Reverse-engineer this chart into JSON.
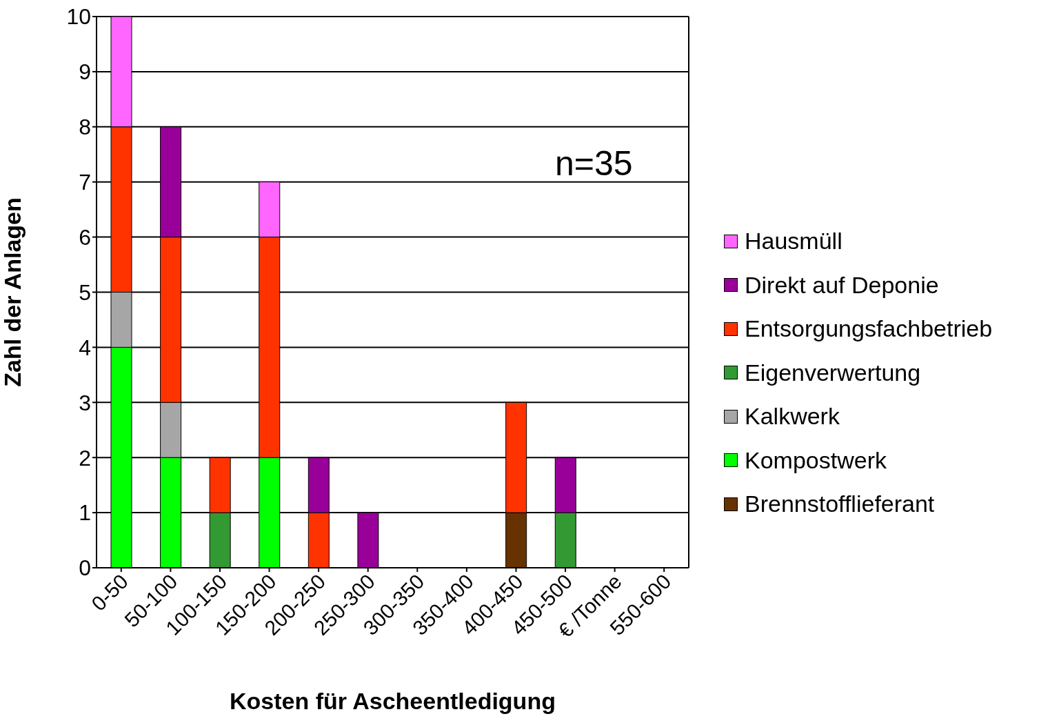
{
  "chart_data": {
    "type": "bar",
    "stacked": true,
    "xlabel": "Kosten für Ascheentledigung",
    "ylabel": "Zahl der Anlagen",
    "categories": [
      "0-50",
      "50-100",
      "100-150",
      "150-200",
      "200-250",
      "250-300",
      "300-350",
      "350-400",
      "400-450",
      "450-500",
      "€ /Tonne",
      "550-600"
    ],
    "series": [
      {
        "name": "Brennstofflieferant",
        "color": "#663300",
        "values": [
          0,
          0,
          0,
          0,
          0,
          0,
          0,
          0,
          1,
          0,
          0,
          0
        ]
      },
      {
        "name": "Kompostwerk",
        "color": "#00ff00",
        "values": [
          4,
          2,
          0,
          2,
          0,
          0,
          0,
          0,
          0,
          0,
          0,
          0
        ]
      },
      {
        "name": "Kalkwerk",
        "color": "#a6a6a6",
        "values": [
          1,
          1,
          0,
          0,
          0,
          0,
          0,
          0,
          0,
          0,
          0,
          0
        ]
      },
      {
        "name": "Eigenverwertung",
        "color": "#339933",
        "values": [
          0,
          0,
          1,
          0,
          0,
          0,
          0,
          0,
          0,
          1,
          0,
          0
        ]
      },
      {
        "name": "Entsorgungsfachbetrieb",
        "color": "#ff3300",
        "values": [
          3,
          3,
          1,
          4,
          1,
          0,
          0,
          0,
          2,
          0,
          0,
          0
        ]
      },
      {
        "name": "Direkt auf Deponie",
        "color": "#990099",
        "values": [
          0,
          2,
          0,
          0,
          1,
          1,
          0,
          0,
          0,
          1,
          0,
          0
        ]
      },
      {
        "name": "Hausmüll",
        "color": "#ff66ff",
        "values": [
          2,
          0,
          0,
          1,
          0,
          0,
          0,
          0,
          0,
          0,
          0,
          0
        ]
      }
    ],
    "ylim": [
      0,
      10
    ],
    "yticks": [
      0,
      1,
      2,
      3,
      4,
      5,
      6,
      7,
      8,
      9,
      10
    ],
    "grid": "y",
    "legend": "right",
    "annotations": [
      "n=35"
    ]
  }
}
